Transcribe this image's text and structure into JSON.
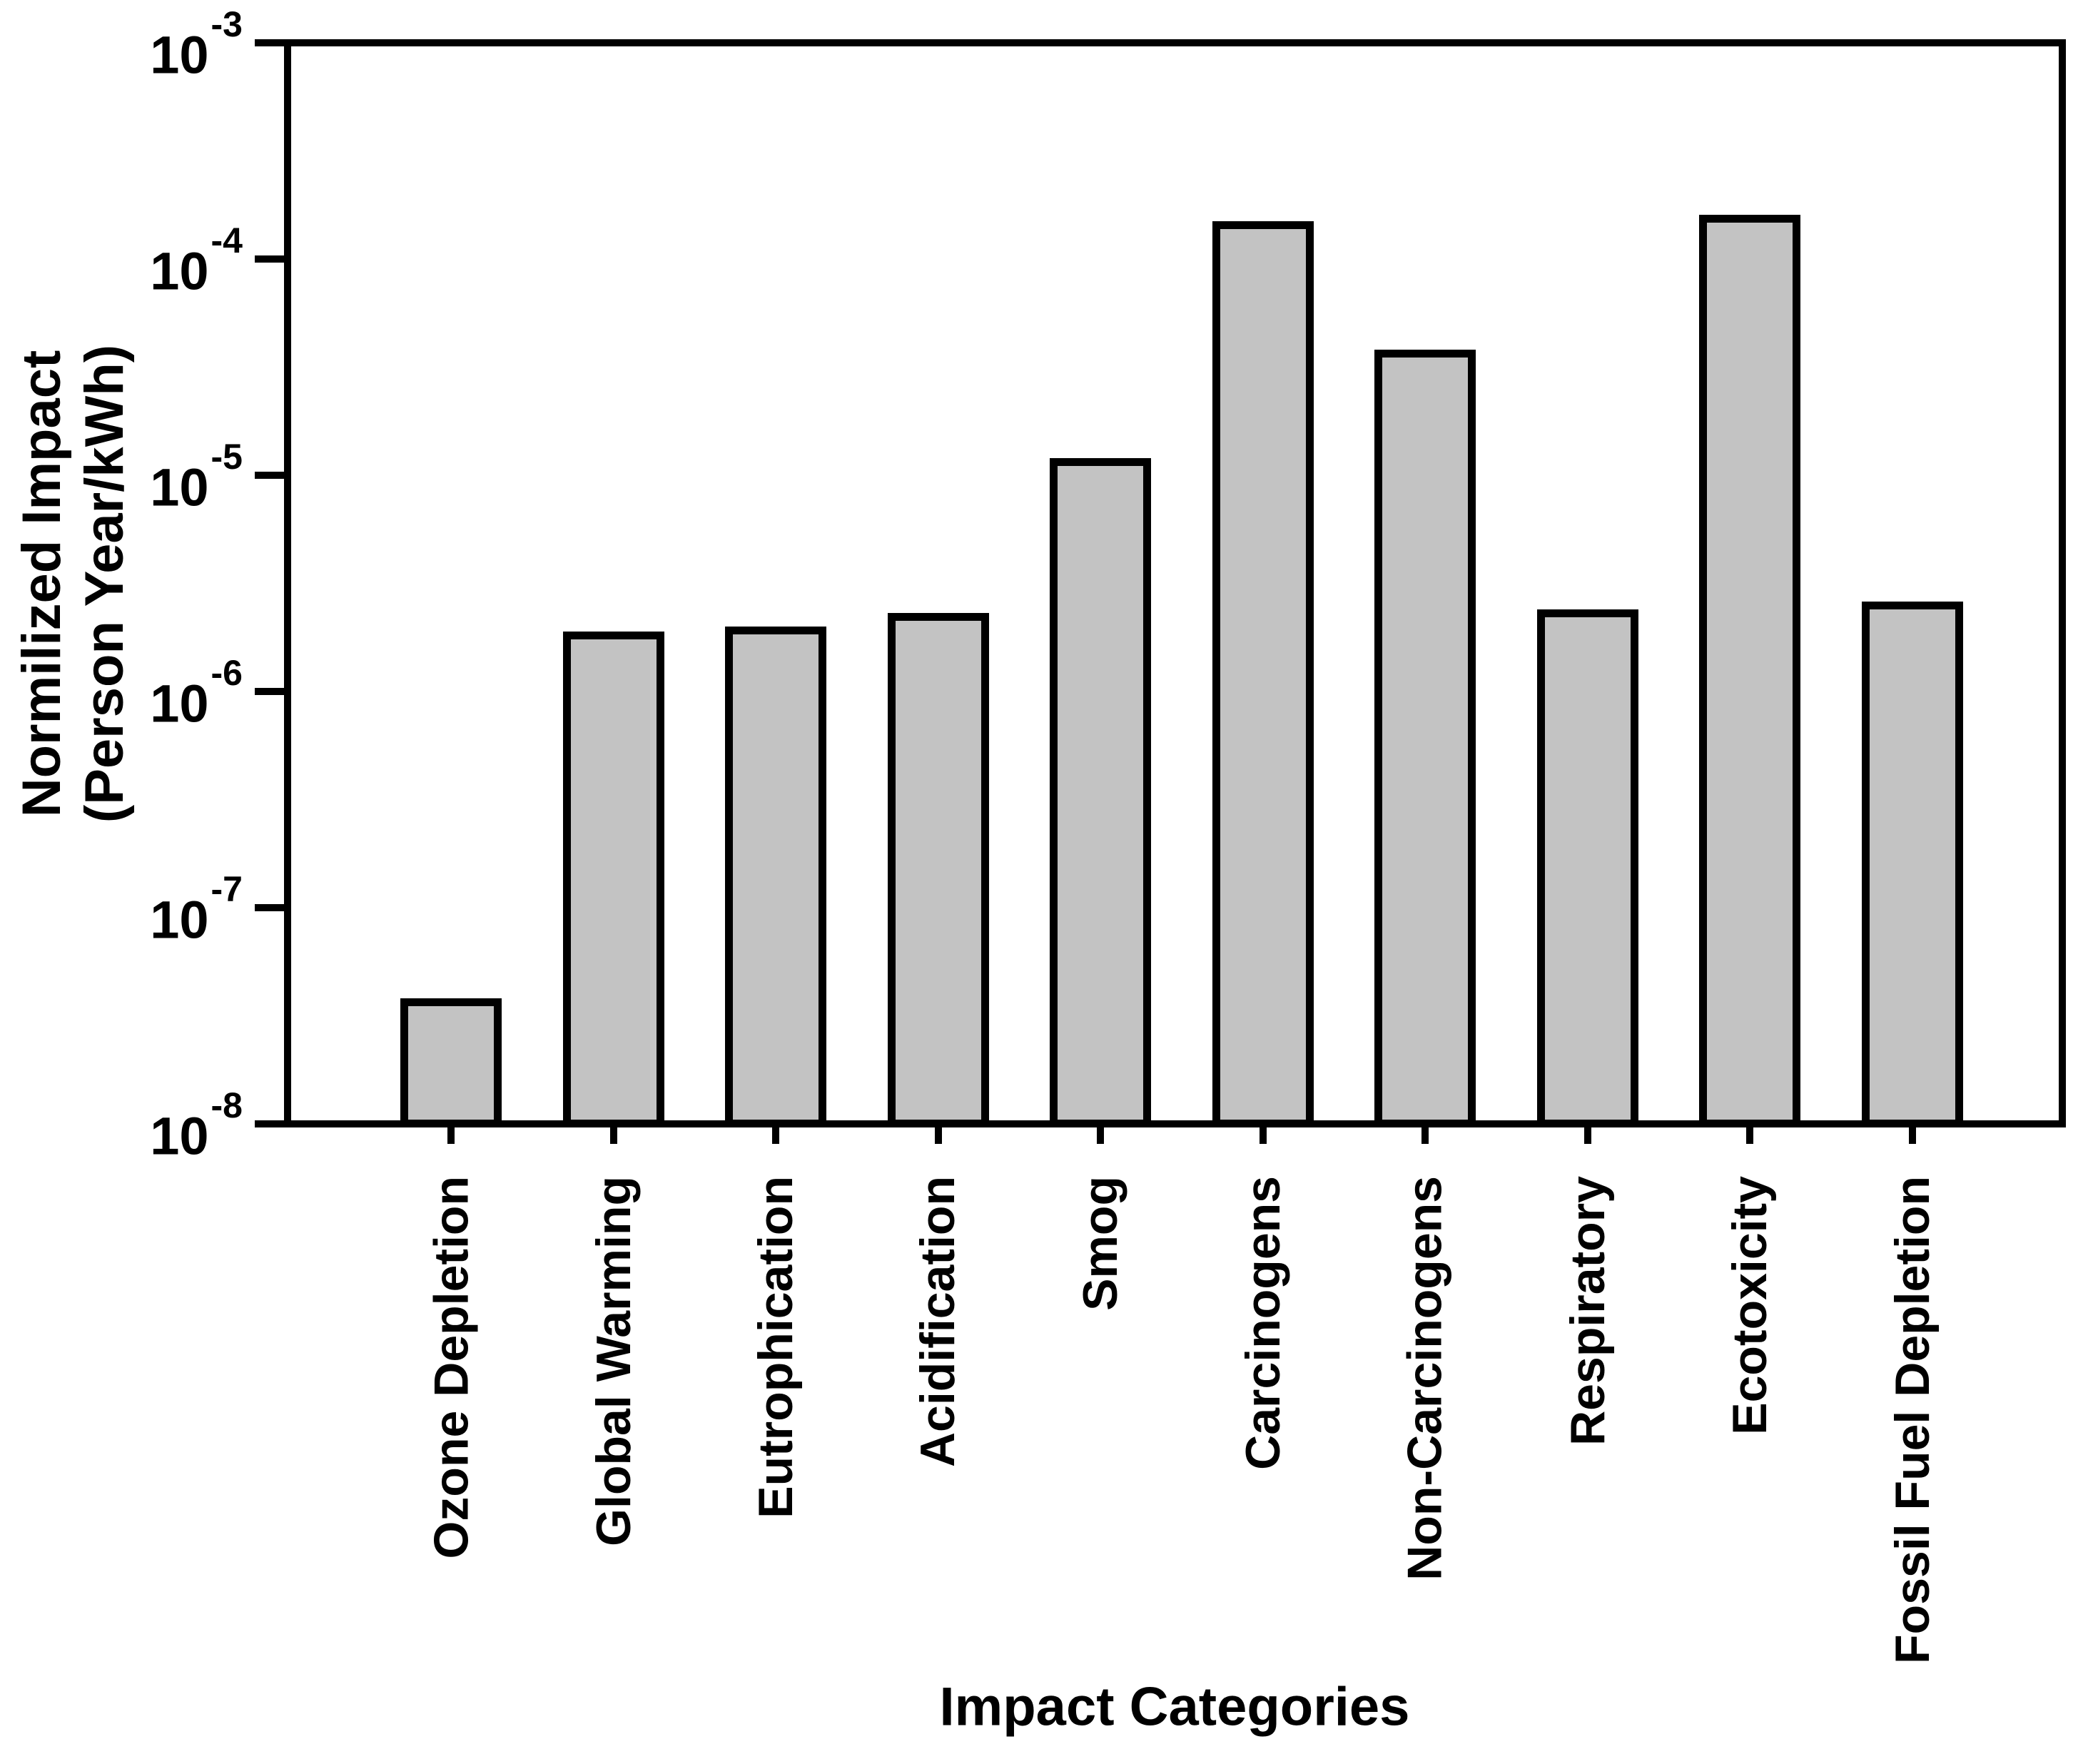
{
  "chart_data": {
    "type": "bar",
    "title": "",
    "xlabel": "Impact Categories",
    "ylabel_line1": "Normilized Impact",
    "ylabel_line2": "(Person Year/kWh)",
    "categories": [
      "Ozone Depletion",
      "Global Warming",
      "Eutrophication",
      "Acidification",
      "Smog",
      "Carcinogens",
      "Non-Carcinogens",
      "Respiratory",
      "Ecotoxicity",
      "Fossil Fuel Depletion"
    ],
    "values": [
      3.8e-08,
      1.9e-06,
      2e-06,
      2.3e-06,
      1.2e-05,
      0.00015,
      3.8e-05,
      2.4e-06,
      0.00016,
      2.6e-06
    ],
    "yscale": "log",
    "ylim": [
      1e-08,
      0.001
    ],
    "ytick_labels": [
      "10^-3",
      "10^-4",
      "10^-5",
      "10^-6",
      "10^-7",
      "10^-8"
    ],
    "grid": false,
    "legend": null,
    "bar_fill_color": "#c3c3c3",
    "bar_border_color": "#000000",
    "axis_color": "#000000",
    "background_color": "#ffffff"
  }
}
